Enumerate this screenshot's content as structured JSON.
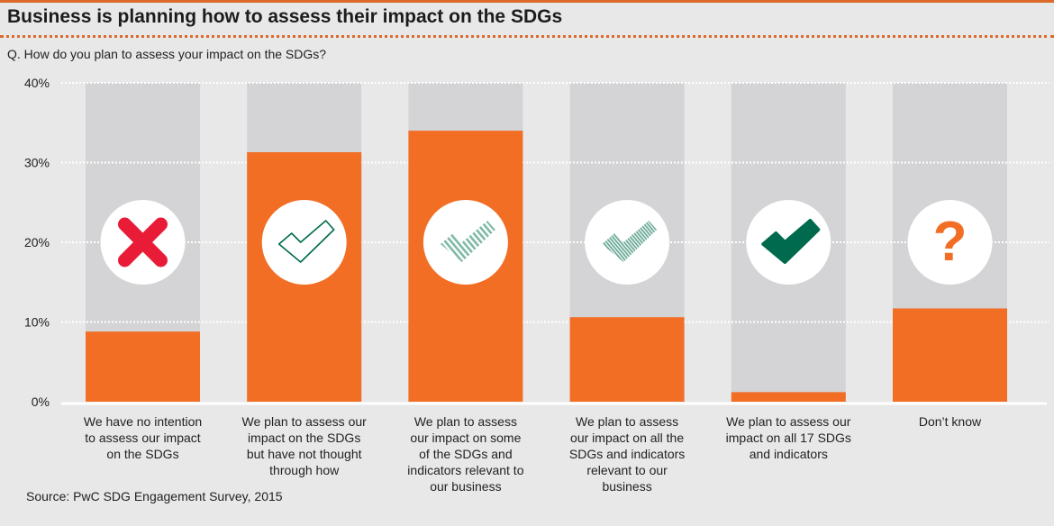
{
  "header": {
    "title": "Business is planning how to assess their impact on the SDGs",
    "question": "Q. How do you plan to assess your impact on the SDGs?"
  },
  "footer": {
    "source": "Source: PwC SDG Engagement Survey, 2015"
  },
  "colors": {
    "accent": "#f26e24",
    "background_bar": "#d4d4d6",
    "cross": "#e81c36",
    "tick_green": "#006a4e",
    "hatch_green": "#7fb9a6",
    "question_mark": "#f26e24"
  },
  "chart_data": {
    "type": "bar",
    "title": "Business is planning how to assess their impact on the SDGs",
    "xlabel": "",
    "ylabel": "",
    "ylim": [
      0,
      40
    ],
    "yticks": [
      0,
      10,
      20,
      30,
      40
    ],
    "ytick_labels": [
      "0%",
      "10%",
      "20%",
      "30%",
      "40%"
    ],
    "grid": true,
    "categories": [
      "We have no intention to assess our impact on the SDGs",
      "We plan to assess our impact on the SDGs but have not thought through how",
      "We plan to assess our impact on some of the SDGs and indicators relevant to our business",
      "We plan to assess our impact on all the SDGs and indicators relevant to our business",
      "We plan to assess our impact on all 17 SDGs and indicators",
      "Don’t know"
    ],
    "category_lines": [
      [
        "We have no intention",
        "to assess our impact",
        "on the SDGs"
      ],
      [
        "We plan to assess our",
        "impact on the SDGs",
        "but have not thought",
        "through how"
      ],
      [
        "We plan to assess",
        "our impact on some",
        "of the SDGs and",
        "indicators relevant to",
        "our business"
      ],
      [
        "We plan to assess",
        "our impact on all the",
        "SDGs and indicators",
        "relevant to our",
        "business"
      ],
      [
        "We plan to assess our",
        "impact on all 17 SDGs",
        "and indicators"
      ],
      [
        "Don’t know"
      ]
    ],
    "values": [
      8.8,
      31.3,
      34.0,
      10.6,
      1.2,
      11.7
    ],
    "unit": "%",
    "icons": [
      "cross-icon",
      "outline-check-icon",
      "hatched-check-icon",
      "fine-hatched-check-icon",
      "solid-check-icon",
      "question-mark-icon"
    ]
  }
}
